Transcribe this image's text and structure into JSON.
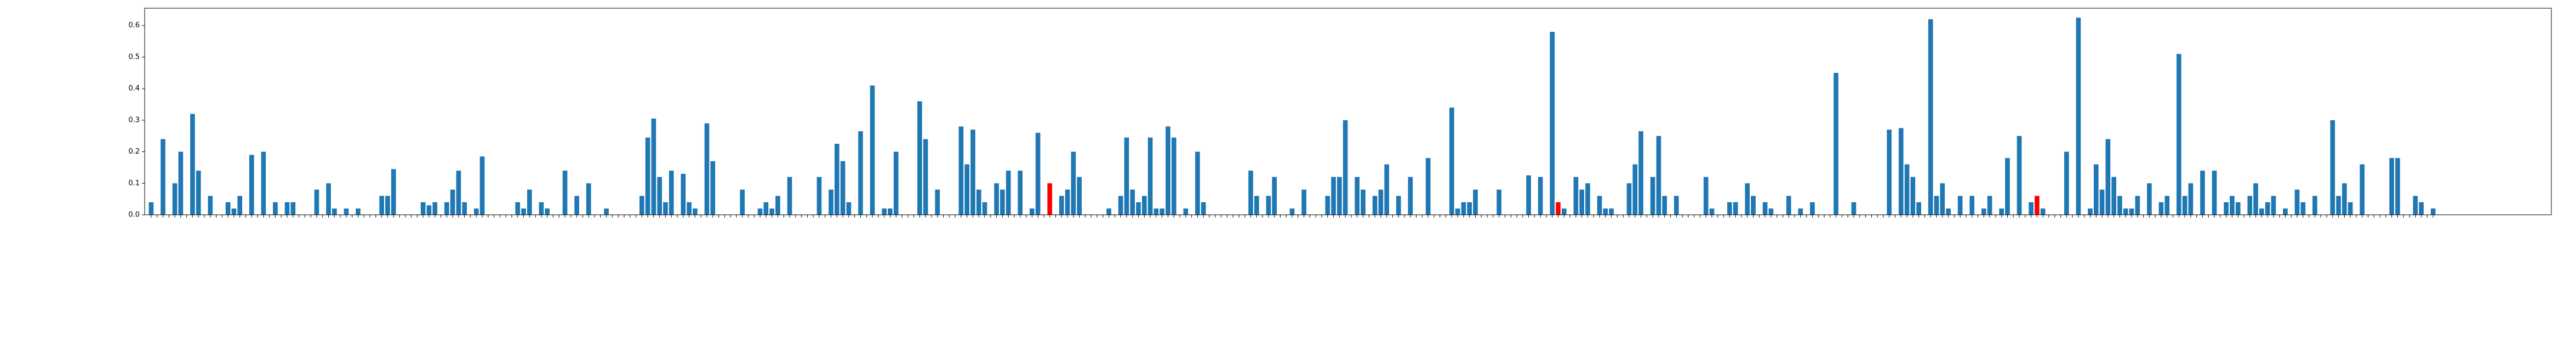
{
  "chart_data": {
    "type": "bar",
    "color": "#1f77b4",
    "highlight_color": "#ff0000",
    "highlighted": [
      152,
      238,
      319
    ],
    "values": [
      0.04,
      0,
      0.24,
      0,
      0.1,
      0.2,
      0,
      0.32,
      0.14,
      0,
      0.06,
      0,
      0,
      0.04,
      0.02,
      0.06,
      0,
      0.19,
      0,
      0.2,
      0,
      0.04,
      0,
      0.04,
      0.04,
      0,
      0,
      0,
      0.08,
      0,
      0.1,
      0.02,
      0,
      0.02,
      0,
      0.02,
      0,
      0,
      0,
      0.06,
      0.06,
      0.145,
      0,
      0,
      0,
      0,
      0.04,
      0.03,
      0.04,
      0,
      0.04,
      0.08,
      0.14,
      0.04,
      0,
      0.02,
      0.185,
      0,
      0,
      0,
      0,
      0,
      0.04,
      0.02,
      0.08,
      0,
      0.04,
      0.02,
      0,
      0,
      0.14,
      0,
      0.06,
      0,
      0.1,
      0,
      0,
      0.02,
      0,
      0,
      0,
      0,
      0,
      0.06,
      0.245,
      0.305,
      0.12,
      0.04,
      0.14,
      0,
      0.13,
      0.04,
      0.02,
      0,
      0.29,
      0.17,
      0,
      0,
      0,
      0,
      0.08,
      0,
      0,
      0.02,
      0.04,
      0.02,
      0.06,
      0,
      0.12,
      0,
      0,
      0,
      0,
      0.12,
      0,
      0.08,
      0.225,
      0.17,
      0.04,
      0,
      0.265,
      0,
      0.41,
      0,
      0.02,
      0.02,
      0.2,
      0,
      0,
      0,
      0.36,
      0.24,
      0,
      0.08,
      0,
      0,
      0,
      0.28,
      0.16,
      0.27,
      0.08,
      0.04,
      0,
      0.1,
      0.08,
      0.14,
      0,
      0.14,
      0,
      0.02,
      0.26,
      0,
      0.1,
      0,
      0.06,
      0.08,
      0.2,
      0.12,
      0,
      0,
      0,
      0,
      0.02,
      0,
      0.06,
      0.245,
      0.08,
      0.04,
      0.06,
      0.245,
      0.02,
      0.02,
      0.28,
      0.245,
      0,
      0.02,
      0,
      0.2,
      0.04,
      0,
      0,
      0,
      0,
      0,
      0,
      0,
      0.14,
      0.06,
      0,
      0.06,
      0.12,
      0,
      0,
      0.02,
      0,
      0.08,
      0,
      0,
      0,
      0.06,
      0.12,
      0.12,
      0.3,
      0,
      0.12,
      0.08,
      0,
      0.06,
      0.08,
      0.16,
      0,
      0.06,
      0,
      0.12,
      0,
      0,
      0.18,
      0,
      0,
      0,
      0.34,
      0.02,
      0.04,
      0.04,
      0.08,
      0,
      0,
      0,
      0.08,
      0,
      0,
      0,
      0,
      0.125,
      0,
      0.12,
      0,
      0.58,
      0.04,
      0.02,
      0,
      0.12,
      0.08,
      0.1,
      0,
      0.06,
      0.02,
      0.02,
      0,
      0,
      0.1,
      0.16,
      0.265,
      0,
      0.12,
      0.25,
      0.06,
      0,
      0.06,
      0,
      0,
      0,
      0,
      0.12,
      0.02,
      0,
      0,
      0.04,
      0.04,
      0,
      0.1,
      0.06,
      0,
      0.04,
      0.02,
      0,
      0,
      0.06,
      0,
      0.02,
      0,
      0.04,
      0,
      0,
      0,
      0.45,
      0,
      0,
      0.04,
      0,
      0,
      0,
      0,
      0,
      0.27,
      0,
      0.275,
      0.16,
      0.12,
      0.04,
      0,
      0.62,
      0.06,
      0.1,
      0.02,
      0,
      0.06,
      0,
      0.06,
      0,
      0.02,
      0.06,
      0,
      0.02,
      0.18,
      0,
      0.25,
      0,
      0.04,
      0.06,
      0.02,
      0,
      0,
      0,
      0.2,
      0,
      0.625,
      0,
      0.02,
      0.16,
      0.08,
      0.24,
      0.12,
      0.06,
      0.02,
      0.02,
      0.06,
      0,
      0.1,
      0,
      0.04,
      0.06,
      0,
      0.51,
      0.06,
      0.1,
      0,
      0.14,
      0,
      0.14,
      0,
      0.04,
      0.06,
      0.04,
      0,
      0.06,
      0.1,
      0.02,
      0.04,
      0.06,
      0,
      0.02,
      0,
      0.08,
      0.04,
      0,
      0.06,
      0,
      0,
      0.3,
      0.06,
      0.1,
      0.04,
      0,
      0.16,
      0,
      0,
      0,
      0,
      0.18,
      0.18,
      0,
      0,
      0.06,
      0.04,
      0,
      0.02
    ],
    "ylim": [
      0,
      0.655
    ],
    "yticks": [
      {
        "value": 0,
        "label": "0.0"
      },
      {
        "value": 0.1,
        "label": "0.1"
      },
      {
        "value": 0.2,
        "label": "0.2"
      },
      {
        "value": 0.3,
        "label": "0.3"
      },
      {
        "value": 0.4,
        "label": "0.4"
      },
      {
        "value": 0.5,
        "label": "0.5"
      },
      {
        "value": 0.6,
        "label": "0.6"
      }
    ]
  }
}
